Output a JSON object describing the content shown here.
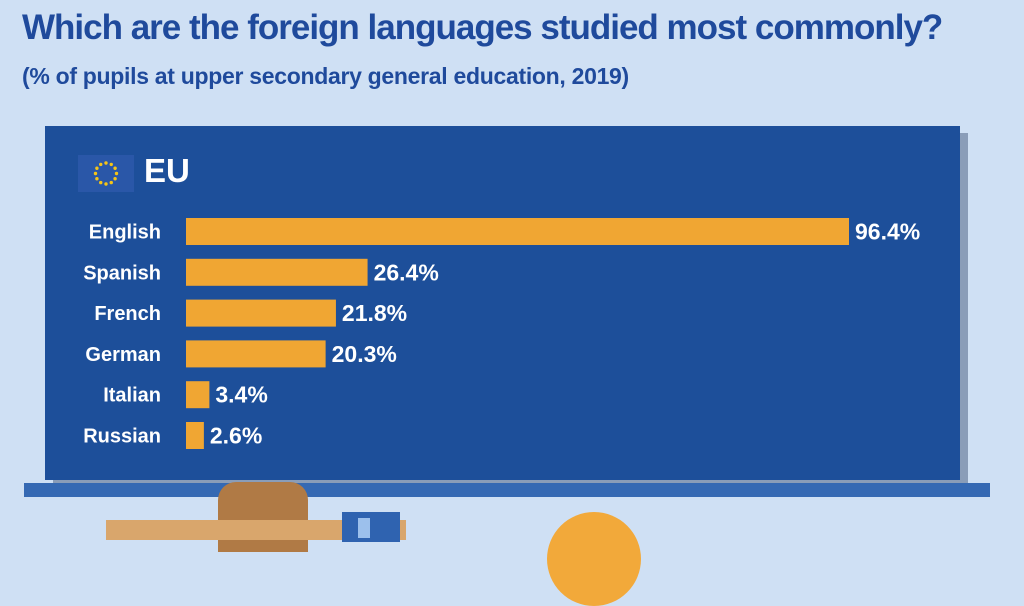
{
  "header": {
    "title": "Which are the foreign languages studied most commonly?",
    "subtitle": "(% of pupils at upper secondary general education, 2019)"
  },
  "board": {
    "region_label": "EU",
    "flag_icon": "eu-flag-icon"
  },
  "colors": {
    "background": "#cfe0f4",
    "board": "#1d4f9a",
    "bar": "#f0a633",
    "text_title": "#1f4a9c",
    "text_on_board": "#ffffff"
  },
  "chart_data": {
    "type": "bar",
    "orientation": "horizontal",
    "title": "Which are the foreign languages studied most commonly?",
    "subtitle": "(% of pupils at upper secondary general education, 2019)",
    "categories": [
      "English",
      "Spanish",
      "French",
      "German",
      "Italian",
      "Russian"
    ],
    "values": [
      96.4,
      26.4,
      21.8,
      20.3,
      3.4,
      2.6
    ],
    "value_labels": [
      "96.4%",
      "26.4%",
      "21.8%",
      "20.3%",
      "3.4%",
      "2.6%"
    ],
    "xlim": [
      0,
      100
    ],
    "grid": false,
    "legend": "none"
  }
}
